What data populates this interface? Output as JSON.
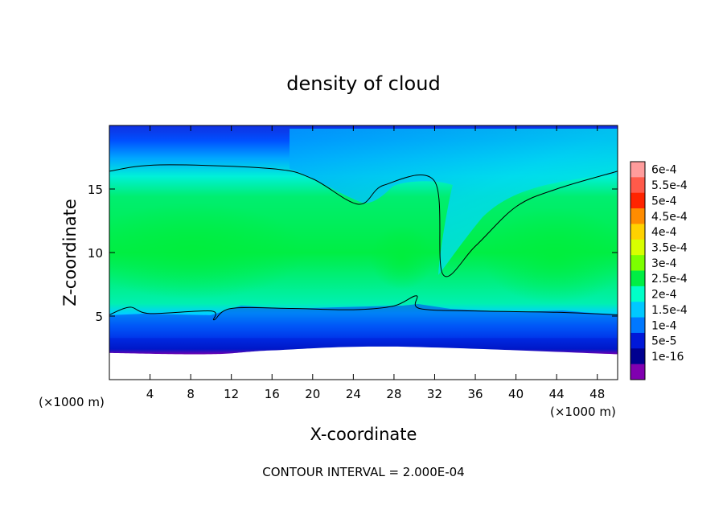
{
  "chart_data": {
    "type": "heatmap",
    "title": "density of cloud",
    "xlabel": "X-coordinate",
    "ylabel": "Z-coordinate",
    "x_unit_left": "(×1000 m)",
    "x_unit_right": "(×1000 m)",
    "footer": "CONTOUR INTERVAL = 2.000E-04",
    "xlim": [
      0,
      50
    ],
    "ylim": [
      0,
      20
    ],
    "x_ticks": [
      4,
      8,
      12,
      16,
      20,
      24,
      28,
      32,
      36,
      40,
      44,
      48
    ],
    "y_ticks": [
      5,
      10,
      15
    ],
    "grid": false,
    "legend": "right",
    "colorbar": {
      "labels": [
        "6e-4",
        "5.5e-4",
        "5e-4",
        "4.5e-4",
        "4e-4",
        "3.5e-4",
        "3e-4",
        "2.5e-4",
        "2e-4",
        "1.5e-4",
        "1e-4",
        "5e-5",
        "1e-16"
      ],
      "colors": [
        "#ff9c9c",
        "#ff5a4a",
        "#ff2400",
        "#ff8c00",
        "#ffd200",
        "#d8ff00",
        "#7cff00",
        "#00ee44",
        "#00ffc8",
        "#00c8ff",
        "#0078ff",
        "#0018d8",
        "#000090",
        "#8000b0"
      ]
    },
    "field_description_points": {
      "ground_top_km": [
        [
          0,
          2.1
        ],
        [
          10,
          2.0
        ],
        [
          16,
          2.3
        ],
        [
          28,
          2.6
        ],
        [
          50,
          2.0
        ]
      ],
      "contour_2e-4_upper_km": [
        [
          0,
          16.4
        ],
        [
          5,
          16.9
        ],
        [
          16,
          16.6
        ],
        [
          20,
          15.8
        ],
        [
          24.5,
          13.8
        ],
        [
          27,
          15.3
        ],
        [
          32,
          15.6
        ],
        [
          32.8,
          8.3
        ],
        [
          36,
          10.5
        ],
        [
          40,
          13.6
        ],
        [
          44,
          15.0
        ],
        [
          50,
          16.4
        ]
      ],
      "contour_2e-4_lower_km": [
        [
          0,
          5.1
        ],
        [
          2,
          5.7
        ],
        [
          4,
          5.2
        ],
        [
          10,
          5.4
        ],
        [
          10.3,
          4.7
        ],
        [
          12,
          5.6
        ],
        [
          18,
          5.6
        ],
        [
          24,
          5.5
        ],
        [
          28,
          5.8
        ],
        [
          30.2,
          6.6
        ],
        [
          30.5,
          5.6
        ],
        [
          36,
          5.4
        ],
        [
          44,
          5.3
        ],
        [
          50,
          5.1
        ]
      ]
    }
  }
}
